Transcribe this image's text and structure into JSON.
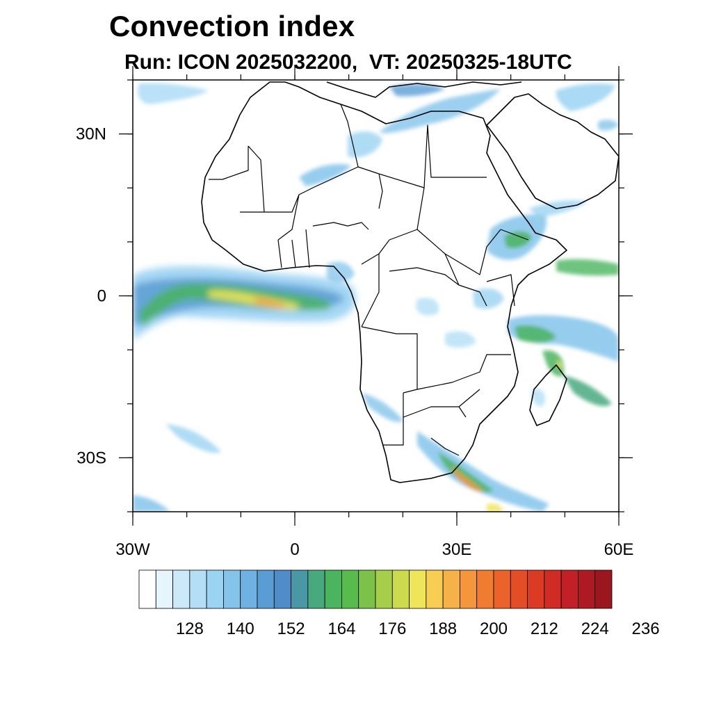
{
  "title": "Convection index",
  "subtitle": "Run: ICON 2025032200,  VT: 20250325-18UTC",
  "map": {
    "lon_range": [
      -30,
      60
    ],
    "lat_range": [
      -40,
      40
    ],
    "lon_ticks": [
      {
        "value": -30,
        "label": "30W"
      },
      {
        "value": 0,
        "label": "0"
      },
      {
        "value": 30,
        "label": "30E"
      },
      {
        "value": 60,
        "label": "60E"
      }
    ],
    "lat_ticks": [
      {
        "value": 30,
        "label": "30N"
      },
      {
        "value": 0,
        "label": "0"
      },
      {
        "value": -30,
        "label": "30S"
      }
    ],
    "minor_lon_step": 10,
    "minor_lat_step": 10
  },
  "colorbar": {
    "colors": [
      "#ffffff",
      "#e6f4fc",
      "#cbe9f8",
      "#b3def6",
      "#9bd3f3",
      "#84c4eb",
      "#6fb1e2",
      "#5a9dd4",
      "#4f8cc8",
      "#4a98a6",
      "#48a97f",
      "#4ab45f",
      "#58bc4c",
      "#7cc24a",
      "#a6ce4a",
      "#ccdb4e",
      "#eee55a",
      "#f7cd53",
      "#f6b248",
      "#f4963c",
      "#f07c32",
      "#eb632b",
      "#e44e26",
      "#db3b24",
      "#d02c25",
      "#c12126",
      "#ae1a24",
      "#9a1720"
    ],
    "labels": [
      "128",
      "140",
      "152",
      "164",
      "176",
      "188",
      "200",
      "212",
      "224",
      "236"
    ]
  }
}
